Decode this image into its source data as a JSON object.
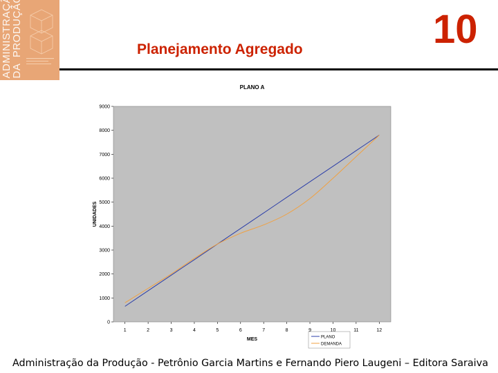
{
  "cover": {
    "vertical_text": "ADMINISTRAÇÃO\nDA  PRODUÇÃO"
  },
  "header": {
    "title": "Planejamento Agregado",
    "chapter_number": "10",
    "accent_color": "#cc2200"
  },
  "footer": {
    "text": "Administração da Produção - Petrônio Garcia Martins e Fernando Piero Laugeni – Editora Saraiva"
  },
  "chart_data": {
    "type": "line",
    "title": "PLANO A",
    "xlabel": "MES",
    "ylabel": "UNIDADES",
    "x": [
      1,
      2,
      3,
      4,
      5,
      6,
      7,
      8,
      9,
      10,
      11,
      12
    ],
    "xlim": [
      0.5,
      12.5
    ],
    "ylim": [
      0,
      9000
    ],
    "yticks": [
      0,
      1000,
      2000,
      3000,
      4000,
      5000,
      6000,
      7000,
      8000,
      9000
    ],
    "grid": false,
    "plot_background": "#c0c0c0",
    "legend_position": "bottom-right",
    "series": [
      {
        "name": "PLANO",
        "color": "#2b3ea8",
        "values": [
          650,
          1300,
          1950,
          2600,
          3250,
          3900,
          4550,
          5200,
          5850,
          6500,
          7150,
          7800
        ]
      },
      {
        "name": "DEMANDA",
        "color": "#f0a040",
        "values": [
          800,
          1400,
          2000,
          2650,
          3250,
          3700,
          4050,
          4500,
          5150,
          6000,
          6900,
          7800
        ]
      }
    ]
  }
}
